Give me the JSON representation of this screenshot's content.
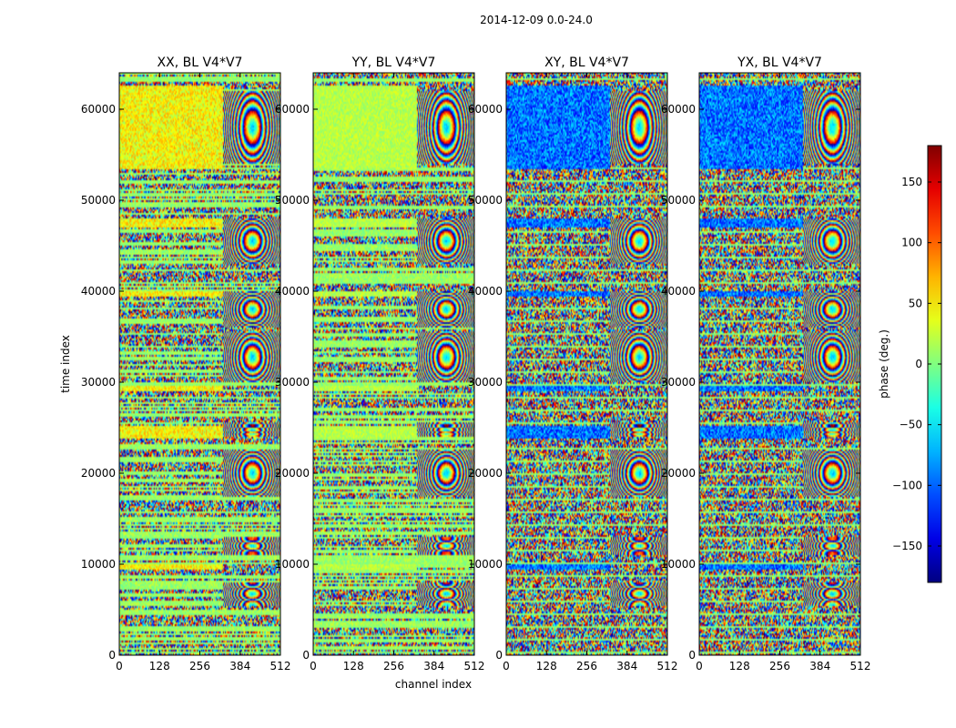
{
  "chart_data": {
    "type": "heatmap",
    "title": "2014-12-09 0.0-24.0",
    "xlabel": "channel index",
    "ylabel": "time index",
    "xlim": [
      0,
      512
    ],
    "ylim": [
      0,
      64000
    ],
    "x_ticks": [
      "0",
      "128",
      "256",
      "384",
      "512"
    ],
    "y_ticks": [
      "0",
      "10000",
      "20000",
      "30000",
      "40000",
      "50000",
      "60000"
    ],
    "x_tick_values": [
      0,
      128,
      256,
      384,
      512
    ],
    "y_tick_values": [
      0,
      10000,
      20000,
      30000,
      40000,
      50000,
      60000
    ],
    "panels": [
      {
        "title": "XX, BL V4*V7",
        "kind": "parallel"
      },
      {
        "title": "YY, BL V4*V7",
        "kind": "parallel"
      },
      {
        "title": "XY, BL V4*V7",
        "kind": "cross"
      },
      {
        "title": "YX, BL V4*V7",
        "kind": "cross"
      }
    ],
    "colorbar": {
      "label": "phase (deg.)",
      "range": [
        -180,
        180
      ],
      "colormap": "jet",
      "ticks": [
        "150",
        "100",
        "50",
        "0",
        "−50",
        "−100",
        "−150"
      ],
      "tick_values": [
        150,
        100,
        50,
        0,
        -50,
        -100,
        -150
      ]
    },
    "features": {
      "fringe_channel_start": 330,
      "fringe_regions": [
        [
          54000,
          62000
        ],
        [
          43000,
          48000
        ],
        [
          36000,
          40000
        ],
        [
          30000,
          35500
        ],
        [
          24000,
          25500
        ],
        [
          17500,
          22500
        ],
        [
          11000,
          13000
        ],
        [
          5500,
          8000
        ]
      ],
      "flagged_bands": [
        [
          9500,
          10000
        ],
        [
          23800,
          25200
        ],
        [
          29000,
          29500
        ],
        [
          39500,
          40000
        ],
        [
          47000,
          48000
        ],
        [
          53500,
          62500
        ]
      ]
    }
  }
}
